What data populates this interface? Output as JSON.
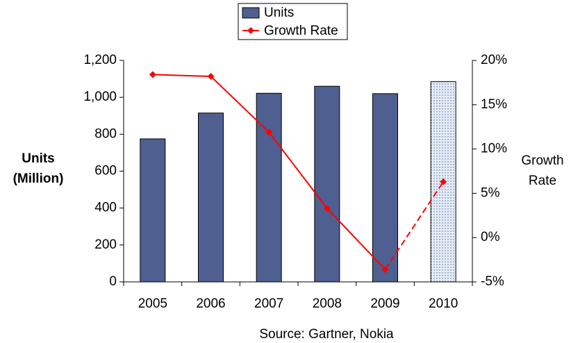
{
  "chart_data": {
    "type": "bar_line",
    "categories": [
      "2005",
      "2006",
      "2007",
      "2008",
      "2009",
      "2010"
    ],
    "series": [
      {
        "name": "Units",
        "type": "bar",
        "color": "#4f5f8f",
        "values": [
          775,
          915,
          1022,
          1060,
          1020,
          1085
        ]
      },
      {
        "name": "Growth Rate",
        "type": "line",
        "axis": "y2",
        "color": "#ff0000",
        "values": [
          18.4,
          18.2,
          11.9,
          3.3,
          -3.6,
          6.3
        ]
      }
    ],
    "forecast_index": 5,
    "ylabel": [
      "Units",
      "(Million)"
    ],
    "y2label": [
      "Growth",
      "Rate"
    ],
    "source": "Source: Gartner, Nokia",
    "ylim": [
      0,
      1200
    ],
    "yticks": [
      0,
      200,
      400,
      600,
      800,
      {
        "value": 1000,
        "label": "1,000"
      },
      {
        "value": 1200,
        "label": "1,200"
      }
    ],
    "y2lim": [
      -5,
      20
    ],
    "y2ticks": [
      {
        "value": -5,
        "label": "-5%"
      },
      {
        "value": 0,
        "label": "0%"
      },
      {
        "value": 5,
        "label": "5%"
      },
      {
        "value": 10,
        "label": "10%"
      },
      {
        "value": 15,
        "label": "15%"
      },
      {
        "value": 20,
        "label": "20%"
      }
    ]
  }
}
